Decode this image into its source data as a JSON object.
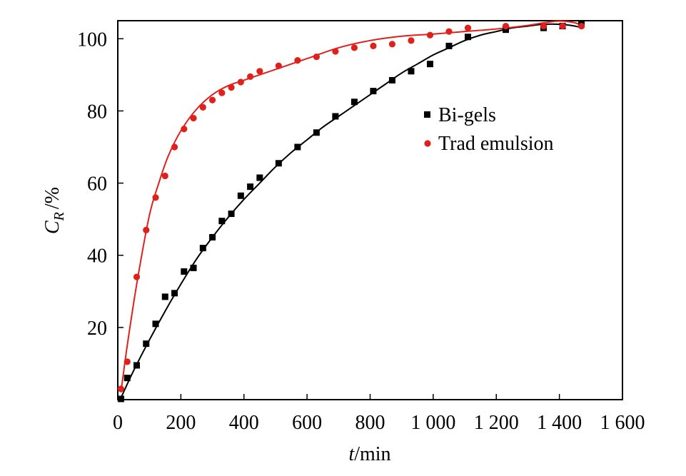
{
  "chart_data": {
    "type": "scatter",
    "xlabel": {
      "var": "t",
      "unit": "/min"
    },
    "ylabel": {
      "var": "C",
      "sub": "R",
      "unit": "/%"
    },
    "xlim": [
      0,
      1600
    ],
    "ylim": [
      0,
      105
    ],
    "x_ticks": [
      0,
      200,
      400,
      600,
      800,
      1000,
      1200,
      1400,
      1600
    ],
    "x_tick_labels": [
      "0",
      "200",
      "400",
      "600",
      "800",
      "1 000",
      "1 200",
      "1 400",
      "1 600"
    ],
    "y_ticks": [
      20,
      40,
      60,
      80,
      100
    ],
    "y_tick_labels": [
      "20",
      "40",
      "60",
      "80",
      "100"
    ],
    "grid": false,
    "legend_position": "right-middle",
    "series": [
      {
        "name": "Bi-gels",
        "marker": "square",
        "color": "#000000",
        "x": [
          10,
          30,
          60,
          90,
          120,
          150,
          180,
          210,
          240,
          270,
          300,
          330,
          360,
          390,
          420,
          450,
          510,
          570,
          630,
          690,
          750,
          810,
          870,
          930,
          990,
          1050,
          1110,
          1230,
          1350,
          1410,
          1470
        ],
        "y": [
          0.2,
          6,
          9.5,
          15.5,
          21,
          28.5,
          29.5,
          35.5,
          36.5,
          42,
          45,
          49.5,
          51.5,
          56.5,
          59,
          61.5,
          65.5,
          70,
          74,
          78.5,
          82.5,
          85.5,
          88.5,
          91,
          93,
          98,
          100.5,
          102.5,
          103,
          103.5,
          104
        ],
        "fit": {
          "color": "#000000",
          "x": [
            10,
            50,
            100,
            150,
            200,
            250,
            300,
            350,
            400,
            450,
            500,
            550,
            600,
            650,
            700,
            750,
            800,
            850,
            900,
            950,
            1000,
            1050,
            1100,
            1150,
            1200,
            1250,
            1300,
            1350,
            1400,
            1450,
            1470
          ],
          "y": [
            0.5,
            8,
            16.5,
            24.5,
            32,
            39,
            45,
            50.5,
            55.5,
            60,
            64.5,
            68.5,
            72,
            75.5,
            78.5,
            81.5,
            84.5,
            87.5,
            90.5,
            93,
            95.5,
            97.5,
            99.5,
            101,
            102,
            103,
            103.5,
            104,
            104,
            103.5,
            103
          ]
        }
      },
      {
        "name": "Trad emulsion",
        "marker": "circle",
        "color": "#e0201b",
        "x": [
          10,
          30,
          60,
          90,
          120,
          150,
          180,
          210,
          240,
          270,
          300,
          330,
          360,
          390,
          420,
          450,
          510,
          570,
          630,
          690,
          750,
          810,
          870,
          930,
          990,
          1050,
          1110,
          1230,
          1350,
          1410,
          1470
        ],
        "y": [
          3,
          10.5,
          34,
          47,
          56,
          62,
          70,
          75,
          78,
          81,
          83,
          85,
          86.5,
          88,
          89.5,
          91,
          92.5,
          94,
          95,
          96.5,
          97.5,
          98,
          98.5,
          99.5,
          101,
          102,
          103,
          103.5,
          103.5,
          103.5,
          103.5
        ],
        "fit": {
          "color": "#e0201b",
          "x": [
            10,
            30,
            60,
            100,
            130,
            160,
            200,
            250,
            300,
            350,
            400,
            500,
            600,
            700,
            800,
            900,
            1000,
            1100,
            1200,
            1300,
            1350,
            1400,
            1450,
            1470
          ],
          "y": [
            2,
            15,
            32,
            51,
            60,
            67.5,
            74.5,
            80.5,
            84.5,
            87,
            88.5,
            91.5,
            94.5,
            97.5,
            99.5,
            100.7,
            101.3,
            102,
            102.7,
            103.7,
            104.4,
            104.9,
            104.4,
            103.5
          ]
        }
      }
    ]
  }
}
